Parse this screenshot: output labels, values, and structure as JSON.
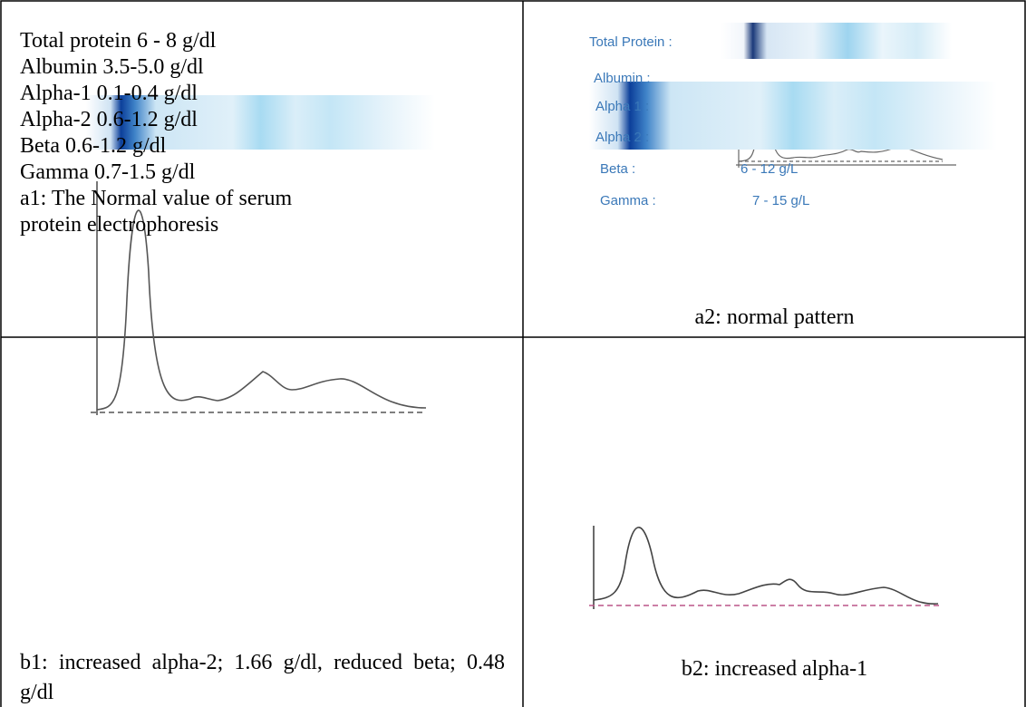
{
  "cells": [
    {
      "lines": [
        "Total protein 6 - 8 g/dl",
        "Albumin 3.5-5.0 g/dl",
        "Alpha-1 0.1-0.4 g/dl",
        "Alpha-2 0.6-1.2 g/dl",
        "Beta 0.6-1.2 g/dl",
        "Gamma 0.7-1.5 g/dl"
      ],
      "caption": "a1: The Normal value of serum protein electrophoresis"
    },
    {
      "labels": [
        "Total Protein :",
        "Albumin :",
        "Alpha 1 :",
        "Alpha 2 :",
        "Beta :",
        "Gamma :"
      ],
      "values": [
        "6 - 12 g/L",
        "7 - 15 g/L"
      ],
      "caption": "a2: normal pattern"
    },
    {
      "caption": "b1: increased alpha-2; 1.66 g/dl, reduced beta; 0.48 g/dl"
    },
    {
      "caption": "b2: increased alpha-1"
    }
  ]
}
